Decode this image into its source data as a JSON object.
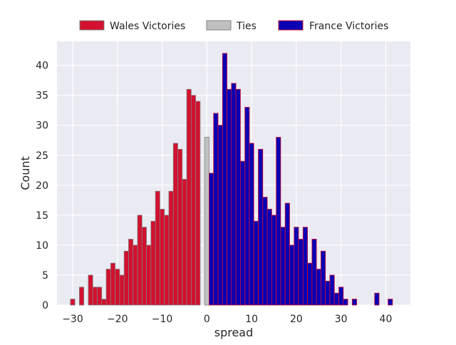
{
  "chart_data": {
    "type": "bar",
    "xlabel": "spread",
    "ylabel": "Count",
    "xlim": [
      -33.5,
      45.5
    ],
    "ylim": [
      0,
      44
    ],
    "xticks": [
      -30,
      -20,
      -10,
      0,
      10,
      20,
      30,
      40
    ],
    "yticks": [
      0,
      5,
      10,
      15,
      20,
      25,
      30,
      35,
      40
    ],
    "tick_labels_x": [
      "−30",
      "−20",
      "−10",
      "0",
      "10",
      "20",
      "30",
      "40"
    ],
    "tick_labels_y": [
      "0",
      "5",
      "10",
      "15",
      "20",
      "25",
      "30",
      "35",
      "40"
    ],
    "grid": true,
    "legend_position": "top-center, outside plot",
    "series": [
      {
        "name": "Wales Victories",
        "color": "#d2102f",
        "edge_color": "#808080",
        "x": [
          -30,
          -29,
          -28,
          -27,
          -26,
          -25,
          -24,
          -23,
          -22,
          -21,
          -20,
          -19,
          -18,
          -17,
          -16,
          -15,
          -14,
          -13,
          -12,
          -11,
          -10,
          -9,
          -8,
          -7,
          -6,
          -5,
          -4,
          -3,
          -2,
          -1
        ],
        "values": [
          1,
          0,
          3,
          0,
          5,
          3,
          3,
          1,
          6,
          7,
          6,
          5,
          9,
          11,
          10,
          15,
          13,
          10,
          14,
          19,
          16,
          15,
          19,
          27,
          26,
          21,
          36,
          35,
          34,
          0
        ]
      },
      {
        "name": "Ties",
        "color": "#c0c0c0",
        "edge_color": "#808080",
        "x": [
          0
        ],
        "values": [
          28
        ]
      },
      {
        "name": "France Victories",
        "color": "#0a00b4",
        "edge_color": "#d2102f",
        "x": [
          1,
          2,
          3,
          4,
          5,
          6,
          7,
          8,
          9,
          10,
          11,
          12,
          13,
          14,
          15,
          16,
          17,
          18,
          19,
          20,
          21,
          22,
          23,
          24,
          25,
          26,
          27,
          28,
          29,
          30,
          31,
          32,
          33,
          34,
          35,
          36,
          37,
          38,
          39,
          40,
          41,
          42
        ],
        "values": [
          22,
          32,
          30,
          42,
          36,
          37,
          36,
          24,
          33,
          27,
          14,
          26,
          18,
          16,
          15,
          28,
          13,
          17,
          10,
          13,
          11,
          13,
          7,
          11,
          6,
          9,
          4,
          5,
          2,
          3,
          1,
          0,
          1,
          0,
          0,
          0,
          0,
          2,
          0,
          0,
          1,
          0
        ]
      }
    ]
  }
}
